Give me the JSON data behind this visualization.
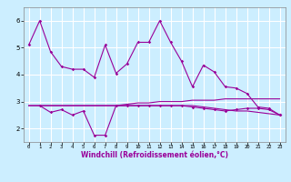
{
  "xlabel": "Windchill (Refroidissement éolien,°C)",
  "background_color": "#cceeff",
  "grid_color": "#ffffff",
  "line_color": "#990099",
  "xlim": [
    -0.5,
    23.5
  ],
  "ylim": [
    1.5,
    6.5
  ],
  "yticks": [
    2,
    3,
    4,
    5,
    6
  ],
  "xticks": [
    0,
    1,
    2,
    3,
    4,
    5,
    6,
    7,
    8,
    9,
    10,
    11,
    12,
    13,
    14,
    15,
    16,
    17,
    18,
    19,
    20,
    21,
    22,
    23
  ],
  "series1_x": [
    0,
    1,
    2,
    3,
    4,
    5,
    6,
    7,
    8,
    9,
    10,
    11,
    12,
    13,
    14,
    15,
    16,
    17,
    18,
    19,
    20,
    21,
    22,
    23
  ],
  "series1_y": [
    5.1,
    6.0,
    4.85,
    4.3,
    4.2,
    4.2,
    3.9,
    5.1,
    4.05,
    4.4,
    5.2,
    5.2,
    6.0,
    5.2,
    4.5,
    3.55,
    4.35,
    4.1,
    3.55,
    3.5,
    3.3,
    2.8,
    2.75,
    2.5
  ],
  "series2_x": [
    0,
    1,
    2,
    3,
    4,
    5,
    6,
    7,
    8,
    9,
    10,
    11,
    12,
    13,
    14,
    15,
    16,
    17,
    18,
    19,
    20,
    21,
    22,
    23
  ],
  "series2_y": [
    2.85,
    2.85,
    2.85,
    2.85,
    2.85,
    2.85,
    2.85,
    2.85,
    2.85,
    2.9,
    2.95,
    2.95,
    3.0,
    3.0,
    3.0,
    3.05,
    3.05,
    3.05,
    3.1,
    3.1,
    3.1,
    3.1,
    3.1,
    3.1
  ],
  "series3_x": [
    1,
    2,
    3,
    4,
    5,
    6,
    7,
    8,
    9,
    10,
    11,
    12,
    13,
    14,
    15,
    16,
    17,
    18,
    19,
    20,
    21,
    22,
    23
  ],
  "series3_y": [
    2.85,
    2.6,
    2.7,
    2.5,
    2.65,
    1.75,
    1.75,
    2.85,
    2.85,
    2.85,
    2.85,
    2.85,
    2.85,
    2.85,
    2.8,
    2.75,
    2.7,
    2.65,
    2.7,
    2.75,
    2.75,
    2.7,
    2.5
  ],
  "series4_x": [
    0,
    1,
    2,
    3,
    4,
    5,
    6,
    7,
    8,
    9,
    10,
    11,
    12,
    13,
    14,
    15,
    16,
    17,
    18,
    19,
    20,
    21,
    22,
    23
  ],
  "series4_y": [
    2.85,
    2.85,
    2.85,
    2.85,
    2.85,
    2.85,
    2.85,
    2.85,
    2.85,
    2.85,
    2.85,
    2.85,
    2.85,
    2.85,
    2.85,
    2.85,
    2.8,
    2.75,
    2.7,
    2.65,
    2.65,
    2.6,
    2.55,
    2.5
  ]
}
